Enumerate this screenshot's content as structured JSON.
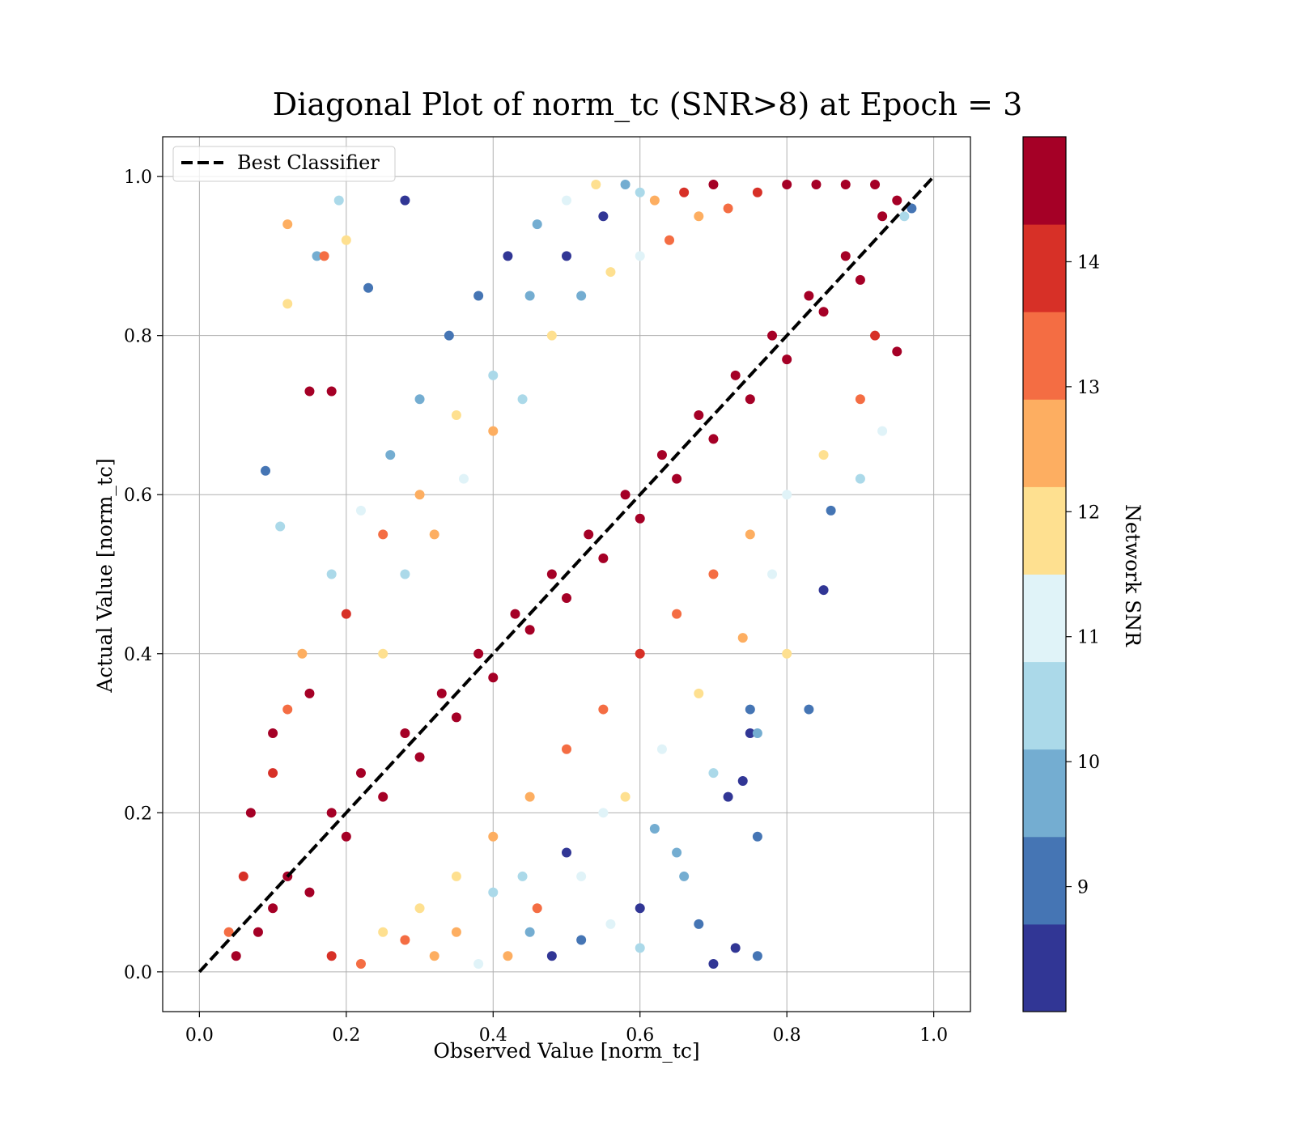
{
  "chart_data": {
    "type": "scatter",
    "title": "Diagonal Plot of norm_tc (SNR>8) at Epoch = 3",
    "xlabel": "Observed Value [norm_tc]",
    "ylabel": "Actual Value [norm_tc]",
    "xlim": [
      -0.05,
      1.05
    ],
    "ylim": [
      -0.05,
      1.05
    ],
    "xticks": [
      "0.0",
      "0.2",
      "0.4",
      "0.6",
      "0.8",
      "1.0"
    ],
    "yticks": [
      "0.0",
      "0.2",
      "0.4",
      "0.6",
      "0.8",
      "1.0"
    ],
    "grid": true,
    "legend": {
      "placement": "top-left",
      "entries": [
        "Best Classifier"
      ]
    },
    "reference_line": {
      "name": "Best Classifier",
      "x": [
        0,
        1
      ],
      "y": [
        0,
        1
      ],
      "style": "dashed",
      "color": "#000000"
    },
    "colorbar": {
      "label": "Network SNR",
      "range": [
        8,
        15
      ],
      "ticks": [
        "9",
        "10",
        "11",
        "12",
        "13",
        "14"
      ],
      "colors": [
        "#313695",
        "#4575b4",
        "#74add1",
        "#abd9e9",
        "#e0f3f8",
        "#fee090",
        "#fdae61",
        "#f46d43",
        "#d73027",
        "#a50026"
      ]
    },
    "points": [
      [
        0.08,
        0.05,
        14.8
      ],
      [
        0.1,
        0.08,
        14.6
      ],
      [
        0.12,
        0.12,
        14.9
      ],
      [
        0.15,
        0.1,
        14.5
      ],
      [
        0.18,
        0.2,
        14.7
      ],
      [
        0.2,
        0.17,
        14.8
      ],
      [
        0.22,
        0.25,
        14.6
      ],
      [
        0.25,
        0.22,
        14.9
      ],
      [
        0.28,
        0.3,
        14.4
      ],
      [
        0.3,
        0.27,
        14.8
      ],
      [
        0.33,
        0.35,
        14.7
      ],
      [
        0.35,
        0.32,
        14.9
      ],
      [
        0.38,
        0.4,
        14.5
      ],
      [
        0.4,
        0.37,
        14.8
      ],
      [
        0.43,
        0.45,
        14.6
      ],
      [
        0.45,
        0.43,
        14.9
      ],
      [
        0.48,
        0.5,
        14.7
      ],
      [
        0.5,
        0.47,
        14.8
      ],
      [
        0.53,
        0.55,
        14.5
      ],
      [
        0.55,
        0.52,
        14.9
      ],
      [
        0.58,
        0.6,
        14.6
      ],
      [
        0.6,
        0.57,
        14.8
      ],
      [
        0.63,
        0.65,
        14.7
      ],
      [
        0.65,
        0.62,
        14.9
      ],
      [
        0.68,
        0.7,
        14.5
      ],
      [
        0.7,
        0.67,
        14.8
      ],
      [
        0.73,
        0.75,
        14.6
      ],
      [
        0.75,
        0.72,
        14.9
      ],
      [
        0.78,
        0.8,
        14.7
      ],
      [
        0.8,
        0.77,
        14.8
      ],
      [
        0.83,
        0.85,
        14.5
      ],
      [
        0.85,
        0.83,
        14.9
      ],
      [
        0.88,
        0.9,
        14.6
      ],
      [
        0.9,
        0.87,
        14.8
      ],
      [
        0.93,
        0.95,
        14.7
      ],
      [
        0.95,
        0.97,
        14.4
      ],
      [
        0.07,
        0.2,
        14.8
      ],
      [
        0.1,
        0.3,
        14.6
      ],
      [
        0.15,
        0.35,
        14.3
      ],
      [
        0.2,
        0.45,
        13.8
      ],
      [
        0.25,
        0.55,
        13.2
      ],
      [
        0.3,
        0.6,
        12.6
      ],
      [
        0.35,
        0.7,
        11.8
      ],
      [
        0.4,
        0.75,
        10.4
      ],
      [
        0.45,
        0.85,
        9.5
      ],
      [
        0.5,
        0.9,
        8.6
      ],
      [
        0.55,
        0.95,
        8.3
      ],
      [
        0.6,
        0.98,
        10.2
      ],
      [
        0.35,
        0.05,
        12.4
      ],
      [
        0.4,
        0.1,
        10.5
      ],
      [
        0.45,
        0.05,
        9.4
      ],
      [
        0.5,
        0.15,
        8.7
      ],
      [
        0.55,
        0.2,
        11.3
      ],
      [
        0.6,
        0.08,
        8.4
      ],
      [
        0.65,
        0.15,
        9.8
      ],
      [
        0.7,
        0.25,
        10.7
      ],
      [
        0.75,
        0.3,
        8.5
      ],
      [
        0.8,
        0.4,
        12.1
      ],
      [
        0.85,
        0.48,
        8.2
      ],
      [
        0.83,
        0.33,
        9.1
      ],
      [
        0.12,
        0.94,
        12.3
      ],
      [
        0.12,
        0.84,
        12.1
      ],
      [
        0.16,
        0.9,
        10.1
      ],
      [
        0.17,
        0.9,
        12.9
      ],
      [
        0.09,
        0.63,
        9.0
      ],
      [
        0.11,
        0.56,
        10.5
      ],
      [
        0.15,
        0.73,
        14.6
      ],
      [
        0.18,
        0.73,
        14.8
      ],
      [
        0.19,
        0.97,
        10.6
      ],
      [
        0.2,
        0.92,
        11.5
      ],
      [
        0.23,
        0.86,
        9.3
      ],
      [
        0.28,
        0.97,
        8.4
      ],
      [
        0.7,
        0.01,
        8.3
      ],
      [
        0.73,
        0.03,
        8.5
      ],
      [
        0.76,
        0.02,
        9.2
      ],
      [
        0.76,
        0.17,
        9.0
      ],
      [
        0.72,
        0.22,
        8.6
      ],
      [
        0.74,
        0.24,
        8.3
      ],
      [
        0.75,
        0.33,
        8.8
      ],
      [
        0.76,
        0.3,
        9.5
      ],
      [
        0.58,
        0.99,
        9.4
      ],
      [
        0.62,
        0.97,
        12.7
      ],
      [
        0.66,
        0.98,
        14.2
      ],
      [
        0.7,
        0.99,
        14.9
      ],
      [
        0.05,
        0.02,
        14.7
      ],
      [
        0.06,
        0.12,
        14.2
      ],
      [
        0.04,
        0.05,
        13.6
      ],
      [
        0.96,
        0.95,
        10.4
      ],
      [
        0.97,
        0.96,
        8.9
      ],
      [
        0.95,
        0.78,
        14.8
      ],
      [
        0.93,
        0.68,
        11.2
      ],
      [
        0.9,
        0.62,
        10.3
      ],
      [
        0.86,
        0.58,
        9.1
      ],
      [
        0.78,
        0.5,
        10.9
      ],
      [
        0.74,
        0.42,
        12.4
      ],
      [
        0.68,
        0.35,
        11.6
      ],
      [
        0.63,
        0.28,
        10.8
      ],
      [
        0.58,
        0.22,
        12.2
      ],
      [
        0.52,
        0.12,
        11.1
      ],
      [
        0.46,
        0.08,
        13.4
      ],
      [
        0.42,
        0.02,
        12.6
      ],
      [
        0.38,
        0.01,
        11.4
      ],
      [
        0.32,
        0.02,
        12.8
      ],
      [
        0.28,
        0.04,
        13.1
      ],
      [
        0.22,
        0.01,
        13.5
      ],
      [
        0.18,
        0.02,
        14.1
      ],
      [
        0.25,
        0.4,
        11.9
      ],
      [
        0.28,
        0.5,
        10.6
      ],
      [
        0.32,
        0.55,
        12.5
      ],
      [
        0.36,
        0.62,
        11.2
      ],
      [
        0.4,
        0.68,
        12.8
      ],
      [
        0.44,
        0.72,
        10.2
      ],
      [
        0.48,
        0.8,
        11.7
      ],
      [
        0.52,
        0.85,
        9.6
      ],
      [
        0.56,
        0.88,
        12.2
      ],
      [
        0.6,
        0.9,
        10.8
      ],
      [
        0.64,
        0.92,
        13.1
      ],
      [
        0.68,
        0.95,
        12.4
      ],
      [
        0.72,
        0.96,
        13.6
      ],
      [
        0.76,
        0.98,
        14.1
      ],
      [
        0.8,
        0.99,
        14.6
      ],
      [
        0.84,
        0.99,
        14.8
      ],
      [
        0.88,
        0.99,
        14.9
      ],
      [
        0.92,
        0.99,
        14.7
      ],
      [
        0.14,
        0.4,
        12.5
      ],
      [
        0.12,
        0.33,
        13.2
      ],
      [
        0.1,
        0.25,
        14.0
      ],
      [
        0.18,
        0.5,
        10.7
      ],
      [
        0.22,
        0.58,
        11.3
      ],
      [
        0.26,
        0.65,
        9.8
      ],
      [
        0.3,
        0.72,
        10.1
      ],
      [
        0.34,
        0.8,
        9.2
      ],
      [
        0.38,
        0.85,
        8.8
      ],
      [
        0.42,
        0.9,
        8.5
      ],
      [
        0.46,
        0.94,
        9.7
      ],
      [
        0.5,
        0.97,
        10.9
      ],
      [
        0.54,
        0.99,
        11.6
      ],
      [
        0.65,
        0.45,
        13.5
      ],
      [
        0.7,
        0.5,
        13.1
      ],
      [
        0.75,
        0.55,
        12.6
      ],
      [
        0.8,
        0.6,
        11.4
      ],
      [
        0.85,
        0.65,
        12.0
      ],
      [
        0.9,
        0.72,
        12.9
      ],
      [
        0.92,
        0.8,
        13.7
      ],
      [
        0.6,
        0.4,
        13.8
      ],
      [
        0.55,
        0.33,
        13.4
      ],
      [
        0.5,
        0.28,
        13.0
      ],
      [
        0.45,
        0.22,
        12.7
      ],
      [
        0.4,
        0.17,
        12.3
      ],
      [
        0.35,
        0.12,
        11.8
      ],
      [
        0.3,
        0.08,
        11.5
      ],
      [
        0.25,
        0.05,
        12.2
      ],
      [
        0.62,
        0.18,
        9.5
      ],
      [
        0.66,
        0.12,
        9.9
      ],
      [
        0.68,
        0.06,
        8.9
      ],
      [
        0.6,
        0.03,
        10.6
      ],
      [
        0.56,
        0.06,
        11.0
      ],
      [
        0.52,
        0.04,
        9.3
      ],
      [
        0.48,
        0.02,
        8.7
      ],
      [
        0.44,
        0.12,
        10.3
      ]
    ]
  }
}
